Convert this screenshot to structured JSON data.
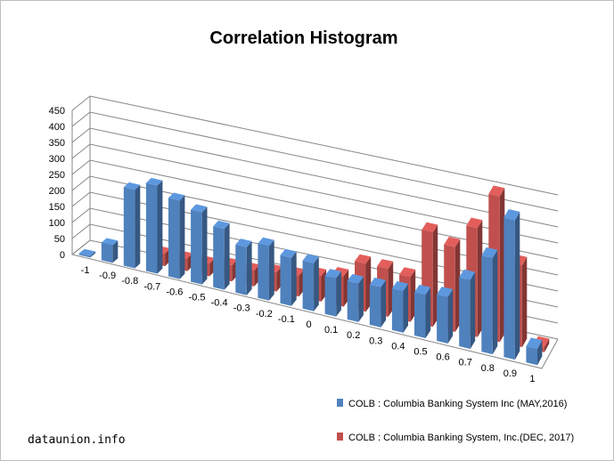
{
  "chart_data": {
    "type": "bar",
    "title": "Correlation Histogram",
    "xlabel": "",
    "ylabel": "",
    "ylim": [
      0,
      450
    ],
    "yticks": [
      0,
      50,
      100,
      150,
      200,
      250,
      300,
      350,
      400,
      450
    ],
    "categories": [
      "-1",
      "-0.9",
      "-0.8",
      "-0.7",
      "-0.6",
      "-0.5",
      "-0.4",
      "-0.3",
      "-0.2",
      "-0.1",
      "0",
      "0.1",
      "0.2",
      "0.3",
      "0.4",
      "0.5",
      "0.6",
      "0.7",
      "0.8",
      "0.9",
      "1"
    ],
    "series": [
      {
        "name": "COLB : Columbia Banking System Inc (MAY,2016)",
        "color": "#4f81bd",
        "values": [
          5,
          55,
          245,
          275,
          245,
          225,
          190,
          150,
          170,
          150,
          150,
          120,
          120,
          125,
          130,
          135,
          145,
          215,
          300,
          435,
          50
        ]
      },
      {
        "name": "COLB : Columbia Banking System, Inc.(DEC, 2017)",
        "color": "#c0504d",
        "values": [
          0,
          0,
          0,
          40,
          40,
          40,
          50,
          50,
          60,
          65,
          80,
          95,
          150,
          150,
          140,
          295,
          265,
          340,
          455,
          255,
          15
        ]
      }
    ],
    "grid": true,
    "legend_position": "bottom-right"
  },
  "watermark": "dataunion.info"
}
